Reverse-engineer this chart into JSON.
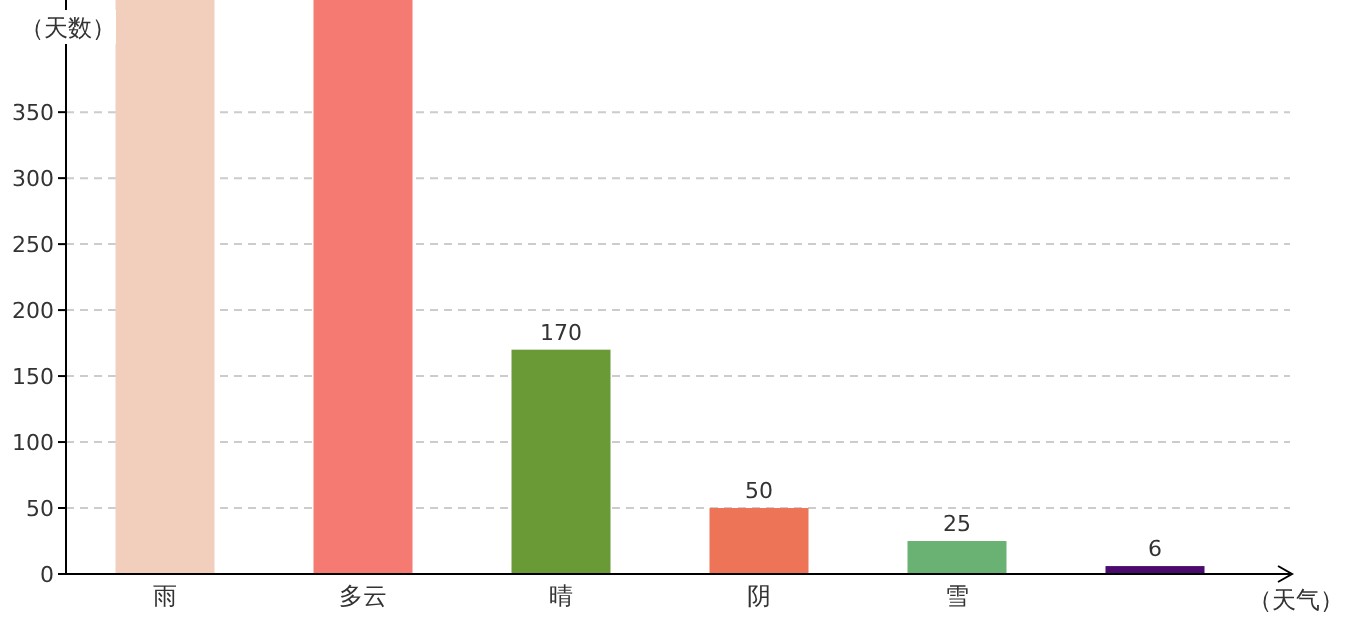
{
  "chart_data": {
    "type": "bar",
    "xlabel": "（天气）",
    "ylabel": "（天数）",
    "categories": [
      "雨",
      "多云",
      "晴",
      "阴",
      "雪",
      null
    ],
    "values": [
      435,
      435,
      170,
      50,
      25,
      6
    ],
    "colors": [
      "#f2cfbd",
      "#f47a72",
      "#6a9a35",
      "#ee7457",
      "#6ab273",
      "#4b0a6e"
    ],
    "value_labels": [
      null,
      null,
      "170",
      "50",
      "25",
      "6"
    ],
    "ylim": [
      0,
      435
    ],
    "yticks": [
      0,
      50,
      100,
      150,
      200,
      250,
      300,
      350
    ],
    "grid": "y"
  }
}
